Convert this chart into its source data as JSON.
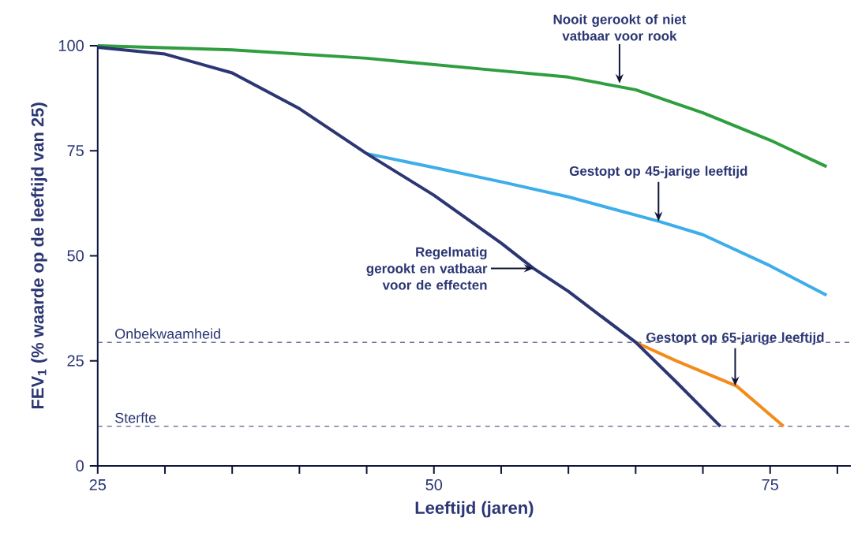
{
  "chart_data": {
    "type": "line",
    "xlabel": "Leeftijd (jaren)",
    "ylabel": "FEV$_{1}$ (% waarde op de leeftijd van 25)",
    "xlim": [
      25,
      81
    ],
    "ylim": [
      0,
      100
    ],
    "xticks": [
      25,
      {
        "value": 30,
        "label": null
      },
      {
        "value": 35,
        "label": null
      },
      {
        "value": 40,
        "label": null
      },
      {
        "value": 45,
        "label": null
      },
      50,
      {
        "value": 55,
        "label": null
      },
      {
        "value": 60,
        "label": null
      },
      {
        "value": 65,
        "label": null
      },
      {
        "value": 70,
        "label": null
      },
      75,
      {
        "value": 80,
        "label": null
      }
    ],
    "yticks": [
      0,
      25,
      50,
      75,
      100
    ],
    "grid": false,
    "marker": "none",
    "line_style": "solid",
    "series": [
      {
        "color": "#2e9e3e",
        "x": [
          25,
          35,
          45,
          55,
          60,
          65,
          70,
          75,
          79.2
        ],
        "values": [
          100,
          99,
          97,
          94,
          92.5,
          89.5,
          84,
          77.5,
          71.2
        ]
      },
      {
        "color": "#3daee9",
        "x": [
          45,
          50,
          55,
          60,
          66.7,
          70,
          75,
          79.2
        ],
        "values": [
          74.3,
          71,
          67.6,
          64,
          58.2,
          55,
          47.6,
          40.6
        ]
      },
      {
        "color": "#f28c1a",
        "x": [
          65,
          68,
          72.5,
          76
        ],
        "values": [
          29.4,
          25,
          19,
          9.4
        ]
      },
      {
        "color": "#2b3673",
        "x": [
          25,
          30,
          35,
          40,
          45,
          50,
          55,
          57.4,
          60,
          65,
          68,
          71.3
        ],
        "values": [
          99.6,
          98,
          93.5,
          85,
          74.3,
          64.4,
          53,
          47,
          41.5,
          29.4,
          20,
          9.4
        ]
      }
    ],
    "ref_lines": [
      {
        "axis": "y",
        "value": 29.4,
        "label": "Onbekwaamheid",
        "color": "#2b3673",
        "line_style": "dashed"
      },
      {
        "axis": "y",
        "value": 9.4,
        "label": "Sterfte",
        "color": "#2b3673",
        "line_style": "dashed"
      }
    ],
    "annotations": [
      {
        "text": "Nooit gerookt of niet vatbaar voor rook",
        "x": 63.8,
        "y": 91
      },
      {
        "text": "Gestopt op 45-jarige leeftijd",
        "x": 66.7,
        "y": 58.2
      },
      {
        "text": "Regelmatig gerookt en vatbaar voor de effecten",
        "x": 57.4,
        "y": 47
      },
      {
        "text": "Gestopt op 65-jarige leeftijd",
        "x": 72.4,
        "y": 19
      }
    ]
  }
}
